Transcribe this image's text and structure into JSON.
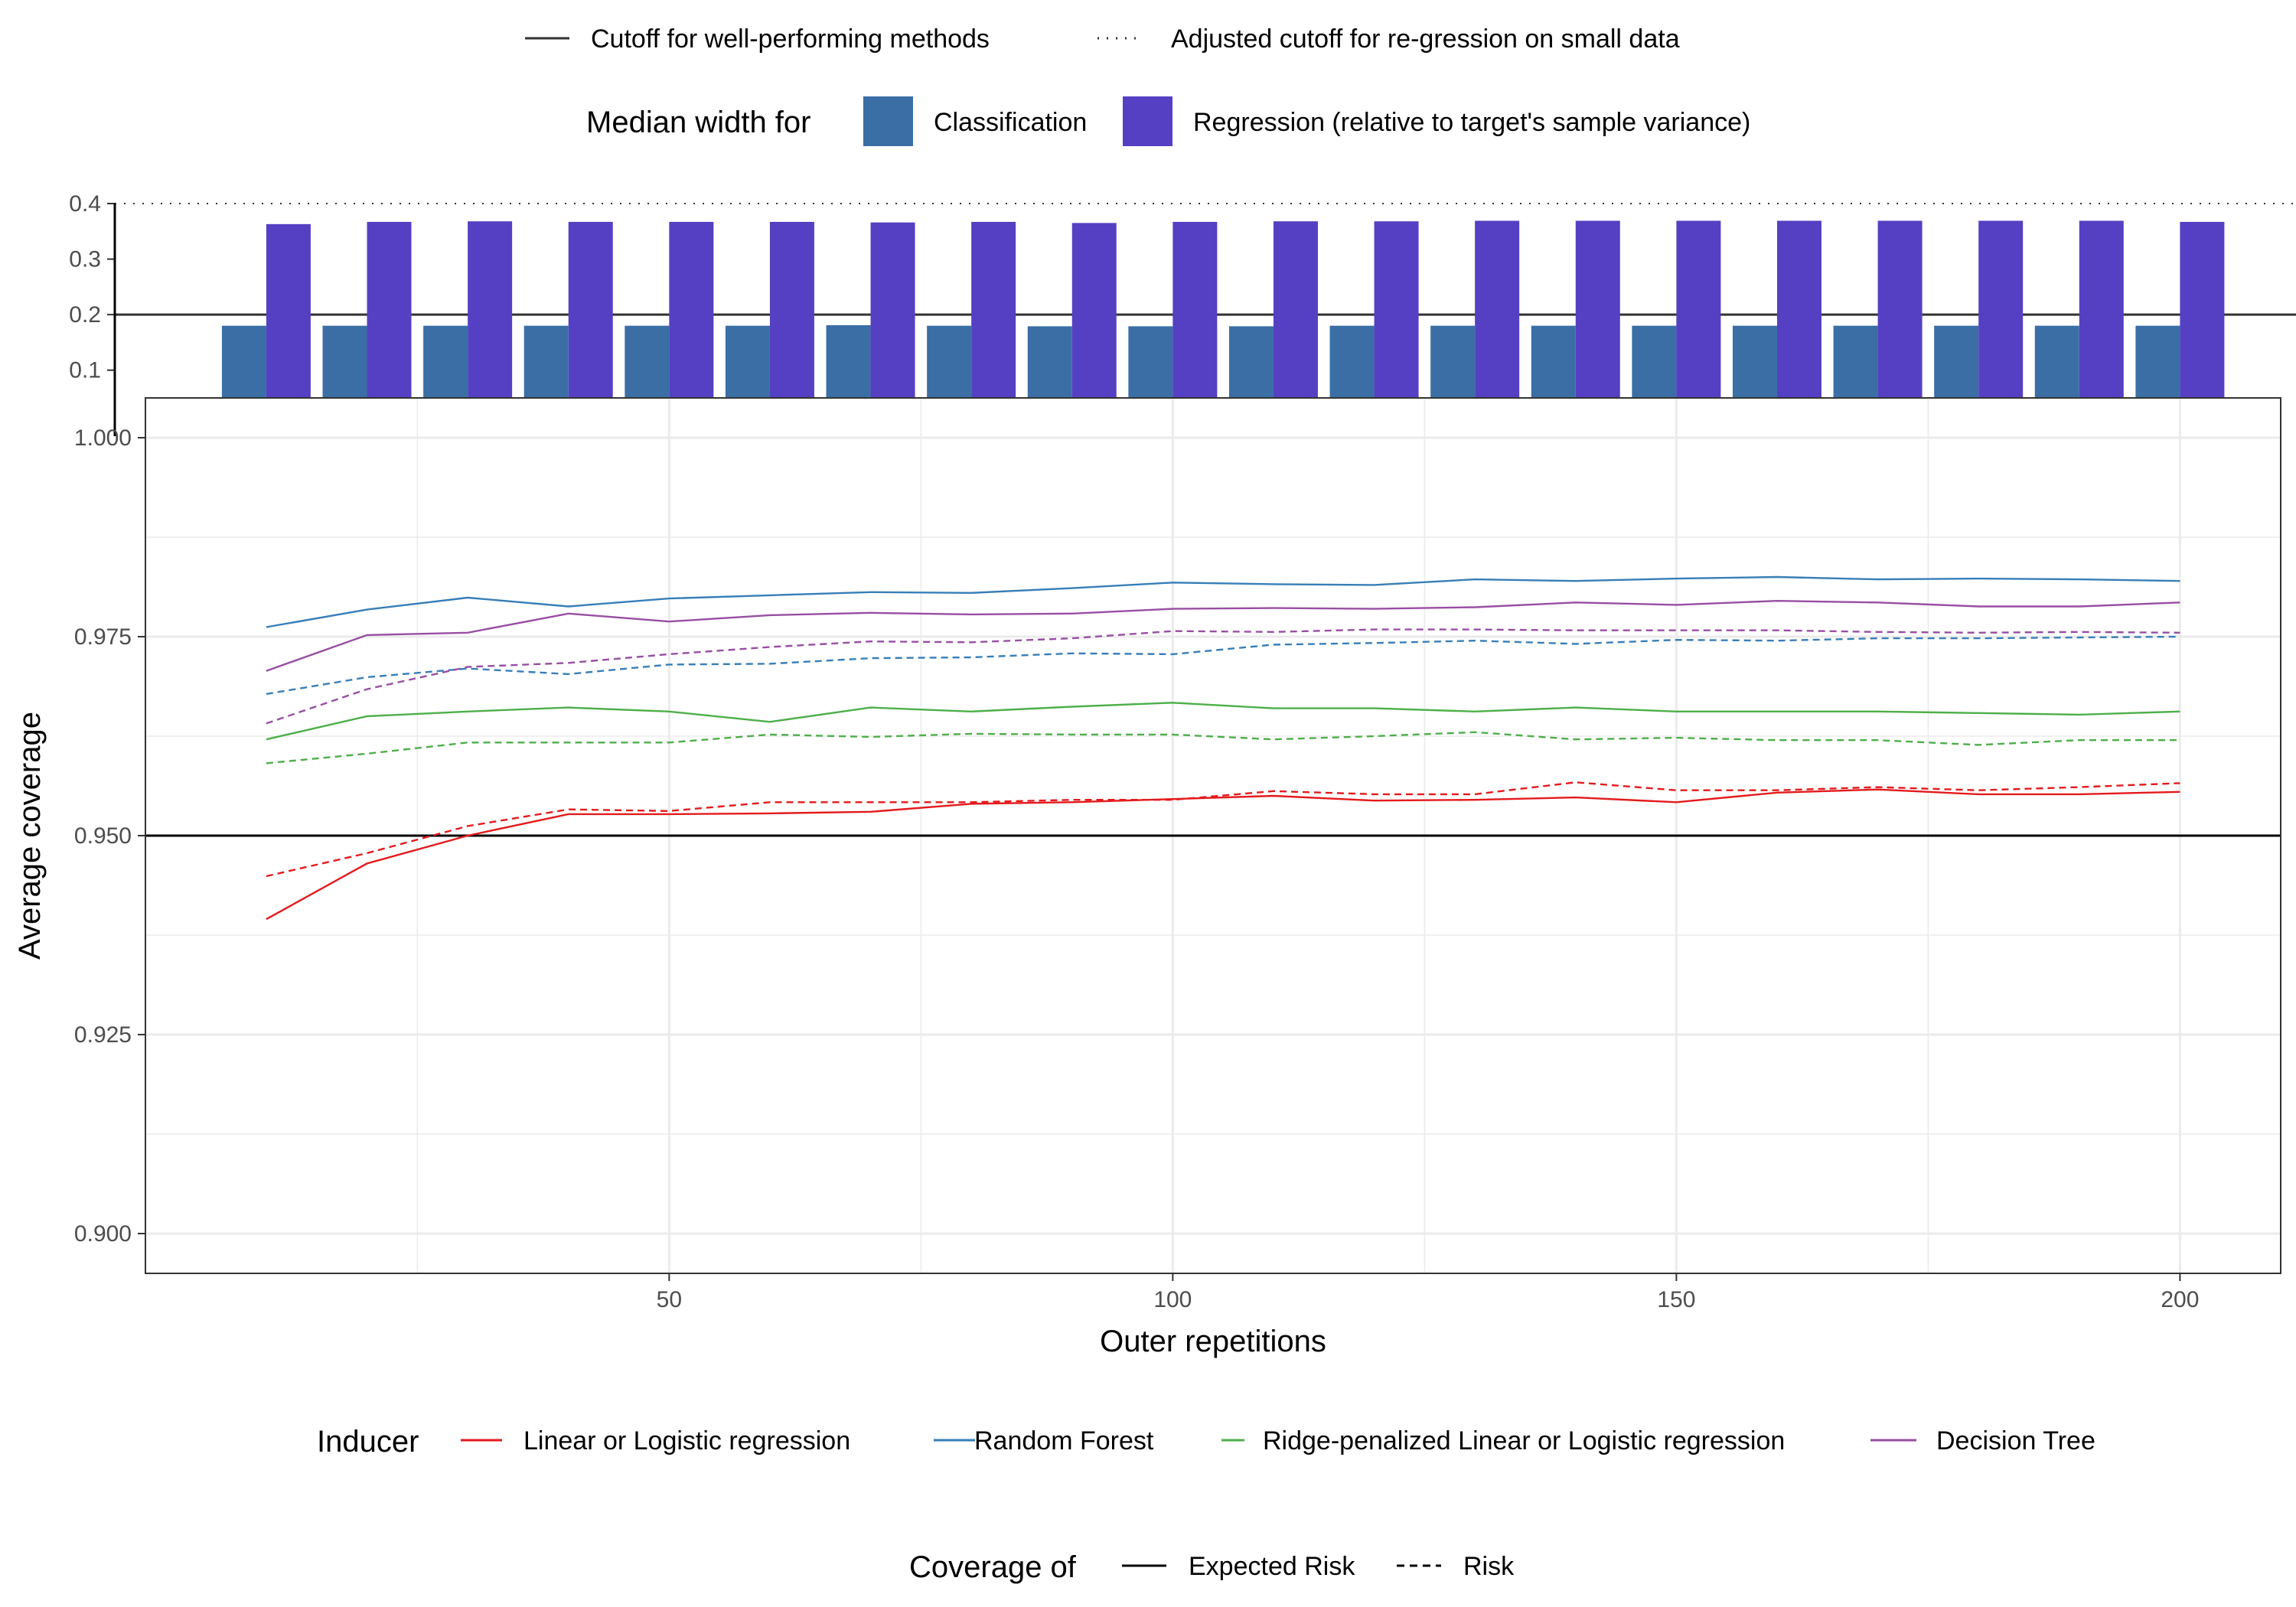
{
  "colors": {
    "linear": "#E41A1C",
    "rf": "#377EB8",
    "ridge": "#4DAF4A",
    "tree": "#984EA3",
    "classification_bar": "#3A6EA5",
    "regression_bar": "#5540C3",
    "grid": "#EBEBEB",
    "cutoff": "#333333"
  },
  "legend_top": {
    "cutoff_label": "Cutoff for well-performing methods",
    "adjusted_cutoff_label": "Adjusted cutoff for re-gression on small data",
    "median_width_title": "Median width for",
    "classification_label": "Classification",
    "regression_label": "Regression (relative to target's sample variance)"
  },
  "legend_inducer": {
    "title": "Inducer",
    "items": [
      {
        "key": "linear",
        "label": "Linear or Logistic regression"
      },
      {
        "key": "rf",
        "label": "Random Forest"
      },
      {
        "key": "ridge",
        "label": "Ridge-penalized Linear or Logistic regression"
      },
      {
        "key": "tree",
        "label": "Decision Tree"
      }
    ]
  },
  "legend_coverage": {
    "title": "Coverage of",
    "items": [
      {
        "key": "solid",
        "label": "Expected Risk"
      },
      {
        "key": "dashed",
        "label": "Risk"
      }
    ]
  },
  "chart_data": [
    {
      "type": "bar",
      "title": "",
      "xlabel": "",
      "ylabel": "",
      "ylim": [
        0.05,
        0.4
      ],
      "yticks": [
        0.1,
        0.2,
        0.3,
        0.4
      ],
      "ytick_labels": [
        "0.1",
        "0.2",
        "0.3",
        "0.4"
      ],
      "reference_lines": [
        {
          "y": 0.2,
          "style": "solid",
          "label": "Cutoff for well-performing methods"
        },
        {
          "y": 0.4,
          "style": "dotted",
          "label": "Adjusted cutoff for re-gression on small data"
        }
      ],
      "x": [
        10,
        20,
        30,
        40,
        50,
        60,
        70,
        80,
        90,
        100,
        110,
        120,
        130,
        140,
        150,
        160,
        170,
        180,
        190,
        200
      ],
      "series": [
        {
          "name": "Classification",
          "values": [
            0.18,
            0.18,
            0.18,
            0.18,
            0.18,
            0.18,
            0.181,
            0.18,
            0.179,
            0.179,
            0.179,
            0.18,
            0.18,
            0.18,
            0.18,
            0.18,
            0.18,
            0.18,
            0.18,
            0.18
          ]
        },
        {
          "name": "Regression (relative to target's sample variance)",
          "values": [
            0.363,
            0.367,
            0.368,
            0.367,
            0.367,
            0.367,
            0.366,
            0.367,
            0.365,
            0.367,
            0.368,
            0.368,
            0.369,
            0.369,
            0.369,
            0.369,
            0.369,
            0.369,
            0.369,
            0.367
          ]
        }
      ]
    },
    {
      "type": "line",
      "title": "",
      "xlabel": "Outer repetitions",
      "ylabel": "Average coverage",
      "xlim": [
        -2,
        210
      ],
      "ylim": [
        0.895,
        1.005
      ],
      "xticks": [
        50,
        100,
        150,
        200
      ],
      "xtick_labels": [
        "50",
        "100",
        "150",
        "200"
      ],
      "yticks": [
        0.9,
        0.925,
        0.95,
        0.975,
        1.0
      ],
      "ytick_labels": [
        "0.900",
        "0.925",
        "0.950",
        "0.975",
        "1.000"
      ],
      "reference_lines": [
        {
          "y": 0.95,
          "style": "solid"
        }
      ],
      "x": [
        10,
        20,
        30,
        40,
        50,
        60,
        70,
        80,
        90,
        100,
        110,
        120,
        130,
        140,
        150,
        160,
        170,
        180,
        190,
        200
      ],
      "series": [
        {
          "name": "Linear or Logistic regression",
          "coverage": "Expected Risk",
          "color_key": "linear",
          "dash": false,
          "values": [
            0.9395,
            0.9465,
            0.95,
            0.9527,
            0.9527,
            0.9528,
            0.953,
            0.954,
            0.9542,
            0.9546,
            0.955,
            0.9544,
            0.9545,
            0.9548,
            0.9542,
            0.9554,
            0.9558,
            0.9552,
            0.9552,
            0.9555
          ]
        },
        {
          "name": "Linear or Logistic regression",
          "coverage": "Risk",
          "color_key": "linear",
          "dash": true,
          "values": [
            0.9449,
            0.9478,
            0.9512,
            0.9533,
            0.9531,
            0.9542,
            0.9542,
            0.9542,
            0.9545,
            0.9545,
            0.9556,
            0.9552,
            0.9552,
            0.9567,
            0.9557,
            0.9557,
            0.9561,
            0.9557,
            0.9561,
            0.9566
          ]
        },
        {
          "name": "Random Forest",
          "coverage": "Expected Risk",
          "color_key": "rf",
          "dash": false,
          "values": [
            0.9762,
            0.9784,
            0.9799,
            0.9788,
            0.9798,
            0.9802,
            0.9806,
            0.9805,
            0.9811,
            0.9818,
            0.9816,
            0.9815,
            0.9822,
            0.982,
            0.9823,
            0.9825,
            0.9822,
            0.9823,
            0.9822,
            0.982
          ]
        },
        {
          "name": "Random Forest",
          "coverage": "Risk",
          "color_key": "rf",
          "dash": true,
          "values": [
            0.9678,
            0.9699,
            0.971,
            0.9703,
            0.9715,
            0.9716,
            0.9723,
            0.9724,
            0.9729,
            0.9728,
            0.974,
            0.9742,
            0.9745,
            0.9741,
            0.9746,
            0.9745,
            0.9748,
            0.9748,
            0.9749,
            0.975
          ]
        },
        {
          "name": "Ridge-penalized Linear or Logistic regression",
          "coverage": "Expected Risk",
          "color_key": "ridge",
          "dash": false,
          "values": [
            0.9621,
            0.965,
            0.9656,
            0.9661,
            0.9656,
            0.9643,
            0.9661,
            0.9656,
            0.9662,
            0.9667,
            0.966,
            0.966,
            0.9656,
            0.9661,
            0.9656,
            0.9656,
            0.9656,
            0.9654,
            0.9652,
            0.9656
          ]
        },
        {
          "name": "Ridge-penalized Linear or Logistic regression",
          "coverage": "Risk",
          "color_key": "ridge",
          "dash": true,
          "values": [
            0.9591,
            0.9603,
            0.9617,
            0.9617,
            0.9617,
            0.9627,
            0.9624,
            0.9628,
            0.9627,
            0.9627,
            0.9621,
            0.9625,
            0.963,
            0.9621,
            0.9623,
            0.962,
            0.962,
            0.9614,
            0.962,
            0.962
          ]
        },
        {
          "name": "Decision Tree",
          "coverage": "Expected Risk",
          "color_key": "tree",
          "dash": false,
          "values": [
            0.9707,
            0.9752,
            0.9755,
            0.9779,
            0.9769,
            0.9777,
            0.978,
            0.9778,
            0.9779,
            0.9785,
            0.9786,
            0.9785,
            0.9787,
            0.9793,
            0.979,
            0.9795,
            0.9793,
            0.9788,
            0.9788,
            0.9793
          ]
        },
        {
          "name": "Decision Tree",
          "coverage": "Risk",
          "color_key": "tree",
          "dash": true,
          "values": [
            0.9641,
            0.9684,
            0.9712,
            0.9717,
            0.9728,
            0.9737,
            0.9744,
            0.9743,
            0.9748,
            0.9757,
            0.9756,
            0.9759,
            0.9759,
            0.9758,
            0.9758,
            0.9758,
            0.9756,
            0.9755,
            0.9756,
            0.9755
          ]
        }
      ]
    }
  ]
}
